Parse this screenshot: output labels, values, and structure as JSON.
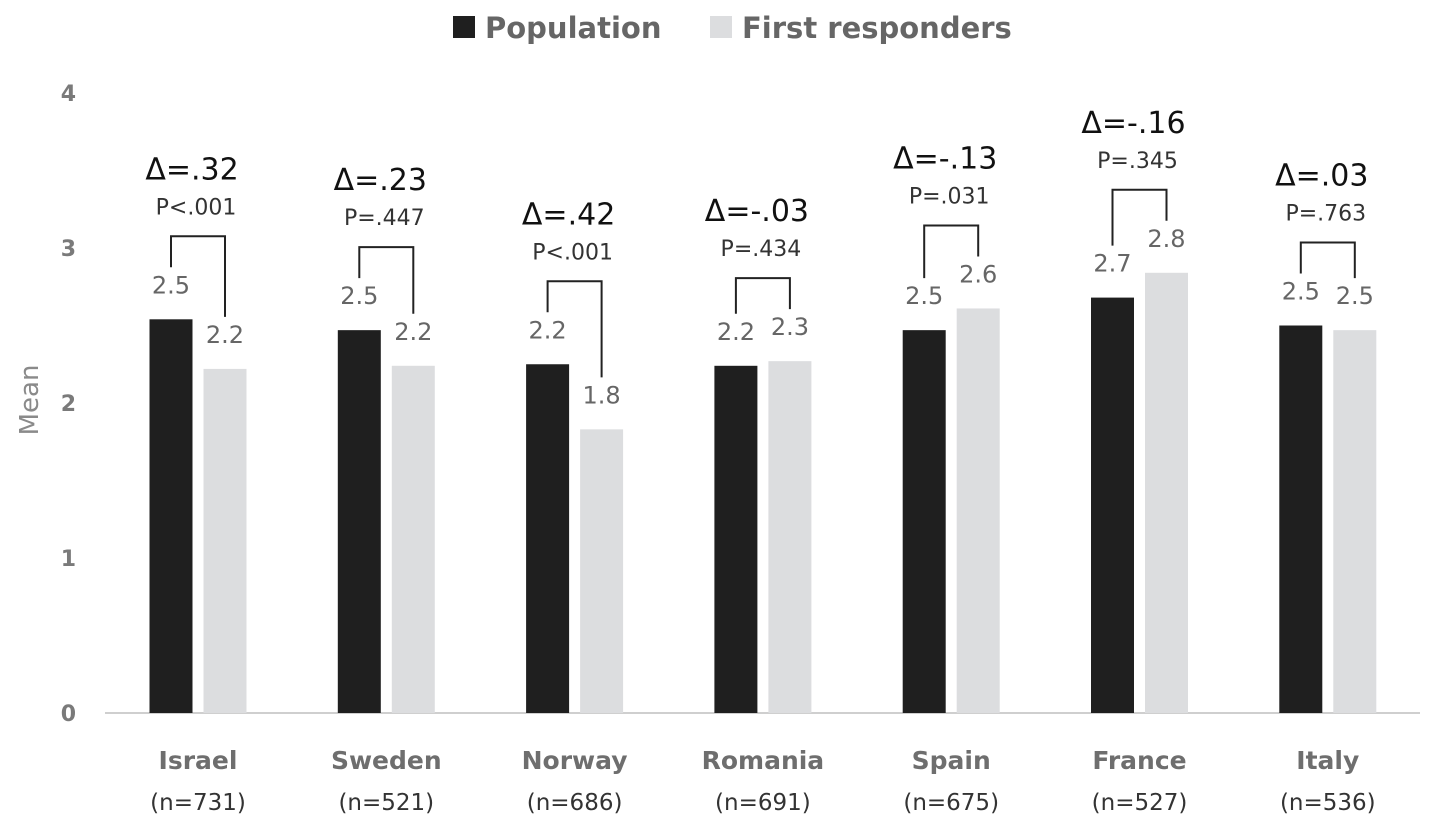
{
  "chart_data": {
    "type": "bar",
    "ylabel": "Mean",
    "ylim": [
      0,
      4
    ],
    "yticks": [
      "0",
      "1",
      "2",
      "3",
      "4"
    ],
    "legend_position": "top-center",
    "categories": [
      {
        "name": "Israel",
        "n": "(n=731)"
      },
      {
        "name": "Sweden",
        "n": "(n=521)"
      },
      {
        "name": "Norway",
        "n": "(n=686)"
      },
      {
        "name": "Romania",
        "n": "(n=691)"
      },
      {
        "name": "Spain",
        "n": "(n=675)"
      },
      {
        "name": "France",
        "n": "(n=527)"
      },
      {
        "name": "Italy",
        "n": "(n=536)"
      }
    ],
    "series": [
      {
        "name": "Population",
        "color": "#1f1f1f",
        "values": [
          2.54,
          2.47,
          2.25,
          2.24,
          2.47,
          2.68,
          2.5
        ],
        "labels": [
          "2.5",
          "2.5",
          "2.2",
          "2.2",
          "2.5",
          "2.7",
          "2.5"
        ]
      },
      {
        "name": "First responders",
        "color": "#dcdddf",
        "values": [
          2.22,
          2.24,
          1.83,
          2.27,
          2.61,
          2.84,
          2.47
        ],
        "labels": [
          "2.2",
          "2.2",
          "1.8",
          "2.3",
          "2.6",
          "2.8",
          "2.5"
        ]
      }
    ],
    "annotations": [
      {
        "delta": "Δ=.32",
        "p": "P<.001"
      },
      {
        "delta": "Δ=.23",
        "p": "P=.447"
      },
      {
        "delta": "Δ=.42",
        "p": "P<.001"
      },
      {
        "delta": "Δ=-.03",
        "p": "P=.434"
      },
      {
        "delta": "Δ=-.13",
        "p": "P=.031"
      },
      {
        "delta": "Δ=-.16",
        "p": "P=.345"
      },
      {
        "delta": "Δ=.03",
        "p": "P=.763"
      }
    ]
  }
}
